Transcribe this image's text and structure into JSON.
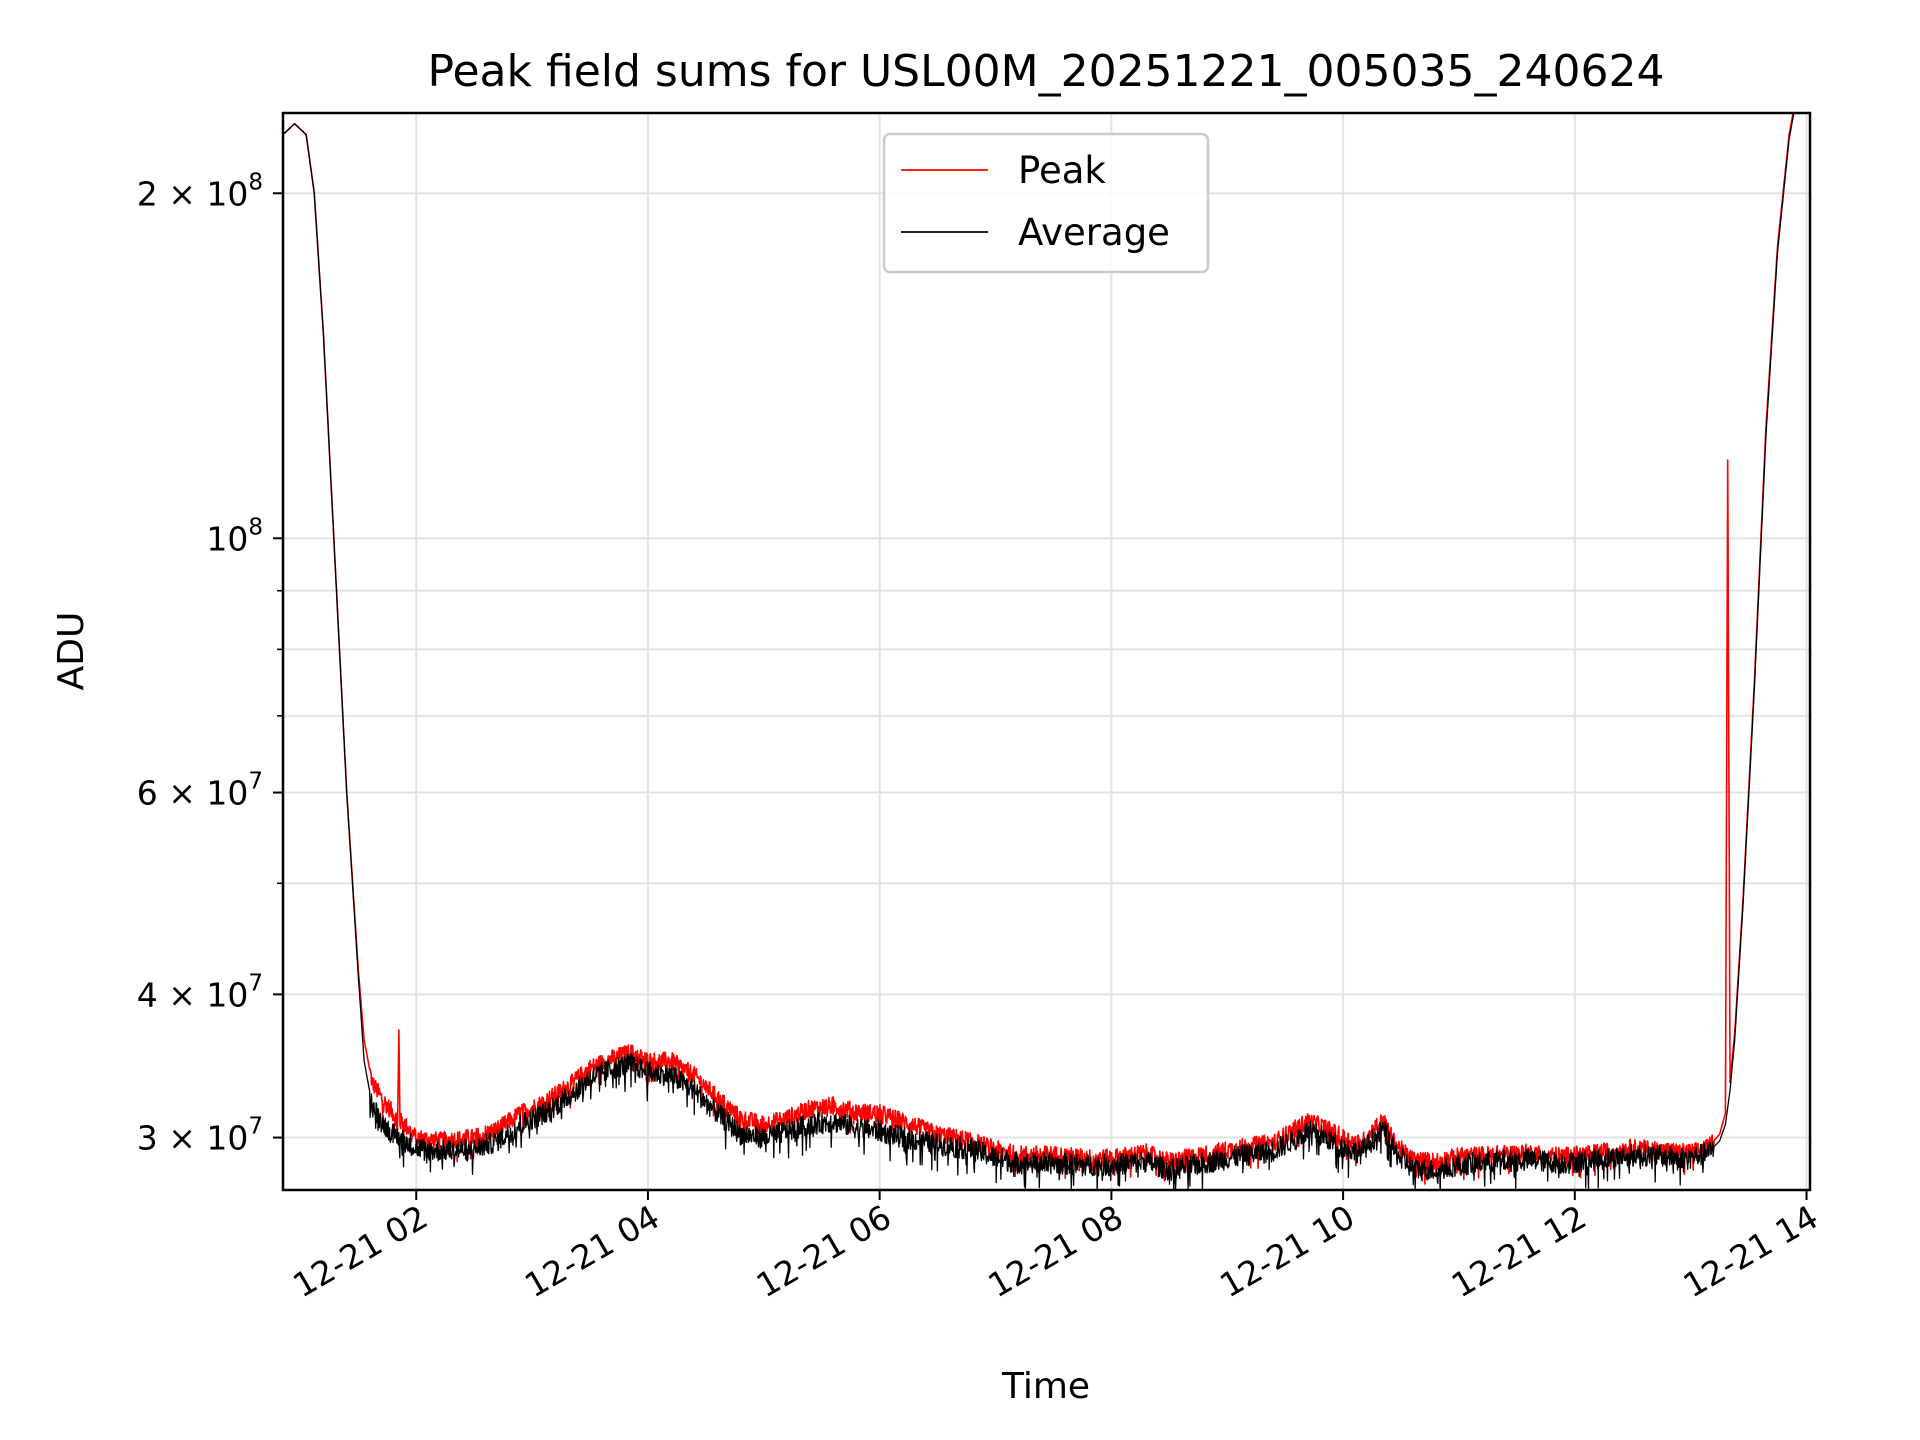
{
  "chart_data": {
    "type": "line",
    "title": "Peak field sums for USL00M_20251221_005035_240624",
    "xlabel": "Time",
    "ylabel": "ADU",
    "yscale": "log",
    "grid": true,
    "legend_position": "top-center",
    "xlim": [
      0.85,
      14.03
    ],
    "ylim": [
      27000000,
      235000000
    ],
    "x_unit": "hours since 2025-12-21 00:00",
    "x_ticks": [
      {
        "value": 2,
        "label": "12-21 02"
      },
      {
        "value": 4,
        "label": "12-21 04"
      },
      {
        "value": 6,
        "label": "12-21 06"
      },
      {
        "value": 8,
        "label": "12-21 08"
      },
      {
        "value": 10,
        "label": "12-21 10"
      },
      {
        "value": 12,
        "label": "12-21 12"
      },
      {
        "value": 14,
        "label": "12-21 14"
      }
    ],
    "y_ticks": [
      {
        "value": 30000000,
        "base": "3 × 10",
        "exp": "7"
      },
      {
        "value": 40000000,
        "base": "4 × 10",
        "exp": "7"
      },
      {
        "value": 60000000,
        "base": "6 × 10",
        "exp": "7"
      },
      {
        "value": 100000000,
        "base": "10",
        "exp": "8"
      },
      {
        "value": 200000000,
        "base": "2 × 10",
        "exp": "8"
      }
    ],
    "y_minor_ticks": [
      50000000,
      70000000,
      80000000,
      90000000
    ],
    "series": [
      {
        "name": "Peak",
        "color": "#ff0000",
        "x": [
          0.85,
          0.95,
          1.05,
          1.12,
          1.2,
          1.3,
          1.4,
          1.5,
          1.55,
          1.62,
          1.7,
          1.8,
          1.84,
          1.85,
          1.86,
          1.9,
          2.0,
          2.2,
          2.5,
          2.7,
          2.9,
          3.1,
          3.3,
          3.5,
          3.7,
          3.85,
          4.0,
          4.2,
          4.4,
          4.6,
          4.8,
          5.0,
          5.2,
          5.4,
          5.6,
          5.8,
          6.0,
          6.2,
          6.5,
          6.8,
          7.0,
          7.2,
          7.5,
          7.8,
          8.0,
          8.3,
          8.5,
          8.8,
          9.1,
          9.4,
          9.6,
          9.7,
          9.85,
          10.0,
          10.15,
          10.3,
          10.35,
          10.45,
          10.6,
          10.8,
          11.0,
          11.3,
          11.6,
          11.9,
          12.2,
          12.5,
          12.8,
          13.0,
          13.15,
          13.25,
          13.3,
          13.32,
          13.34,
          13.38,
          13.45,
          13.55,
          13.65,
          13.75,
          13.85,
          13.9
        ],
        "values": [
          225000000,
          230000000,
          225000000,
          200000000,
          150000000,
          95000000,
          60000000,
          42000000,
          36500000,
          33500000,
          32500000,
          31500000,
          31000000,
          37000000,
          31000000,
          30800000,
          30000000,
          29800000,
          30000000,
          30500000,
          31500000,
          32200000,
          33200000,
          34500000,
          35200000,
          35600000,
          35000000,
          35000000,
          34000000,
          32500000,
          31200000,
          30800000,
          31200000,
          31800000,
          32000000,
          31600000,
          31500000,
          31000000,
          30200000,
          29800000,
          29300000,
          29000000,
          29000000,
          28800000,
          28800000,
          29100000,
          28600000,
          29000000,
          29400000,
          29700000,
          30600000,
          31000000,
          30600000,
          30000000,
          29600000,
          30800000,
          31000000,
          29600000,
          28700000,
          28600000,
          28900000,
          29000000,
          29100000,
          28900000,
          29100000,
          29400000,
          29200000,
          29100000,
          29400000,
          30200000,
          31500000,
          117000000,
          33500000,
          37000000,
          48000000,
          75000000,
          125000000,
          180000000,
          225000000,
          240000000
        ]
      },
      {
        "name": "Average",
        "color": "#000000",
        "x": [
          0.85,
          0.95,
          1.05,
          1.12,
          1.2,
          1.3,
          1.4,
          1.5,
          1.55,
          1.62,
          1.7,
          1.8,
          1.9,
          2.0,
          2.2,
          2.5,
          2.7,
          2.9,
          3.1,
          3.3,
          3.5,
          3.7,
          3.85,
          4.0,
          4.2,
          4.4,
          4.6,
          4.8,
          5.0,
          5.2,
          5.4,
          5.6,
          5.8,
          6.0,
          6.2,
          6.5,
          6.8,
          7.0,
          7.2,
          7.5,
          7.8,
          8.0,
          8.3,
          8.5,
          8.8,
          9.1,
          9.4,
          9.6,
          9.7,
          9.85,
          10.0,
          10.15,
          10.3,
          10.35,
          10.45,
          10.6,
          10.8,
          11.0,
          11.3,
          11.6,
          11.9,
          12.2,
          12.5,
          12.8,
          13.0,
          13.15,
          13.25,
          13.3,
          13.34,
          13.38,
          13.45,
          13.55,
          13.65,
          13.75,
          13.85,
          13.9
        ],
        "values": [
          225000000,
          230000000,
          225000000,
          200000000,
          150000000,
          95000000,
          60000000,
          41500000,
          35000000,
          32000000,
          31000000,
          30200000,
          29800000,
          29400000,
          29200000,
          29300000,
          29800000,
          30800000,
          31500000,
          32500000,
          33800000,
          34500000,
          34800000,
          34200000,
          34000000,
          33000000,
          31500000,
          30200000,
          30000000,
          30400000,
          30800000,
          31000000,
          30600000,
          30400000,
          30000000,
          29600000,
          29300000,
          28800000,
          28500000,
          28500000,
          28400000,
          28400000,
          28600000,
          28100000,
          28500000,
          28900000,
          29200000,
          30000000,
          30400000,
          30000000,
          29400000,
          29100000,
          30200000,
          30500000,
          29100000,
          28200000,
          28100000,
          28400000,
          28600000,
          28700000,
          28500000,
          28700000,
          29000000,
          28900000,
          28800000,
          29100000,
          29800000,
          30800000,
          33000000,
          36500000,
          47500000,
          74000000,
          123000000,
          178000000,
          223000000,
          238000000
        ]
      }
    ]
  }
}
